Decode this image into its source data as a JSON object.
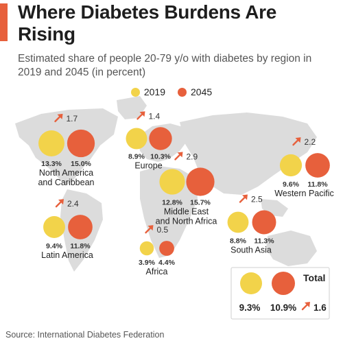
{
  "title": "Where Diabetes Burdens Are Rising",
  "subtitle": "Estimated share of people 20-79 y/o with diabetes by region in 2019 and 2045 (in percent)",
  "source": "Source: International Diabetes Federation",
  "colors": {
    "y2019": "#f2d34a",
    "y2045": "#e7603c",
    "arrow": "#e7603c",
    "map": "#dcdcdc",
    "accent": "#e7603c"
  },
  "chart_data": {
    "type": "bubble-map",
    "legend": [
      "2019",
      "2045"
    ],
    "regions": [
      {
        "name": "North America and Caribbean",
        "lines": [
          "North America",
          "and Caribbean"
        ],
        "v2019": 13.3,
        "v2045": 15.0,
        "change": 1.7
      },
      {
        "name": "Europe",
        "lines": [
          "Europe"
        ],
        "v2019": 8.9,
        "v2045": 10.3,
        "change": 1.4
      },
      {
        "name": "Middle East and North Africa",
        "lines": [
          "Middle East",
          "and North Africa"
        ],
        "v2019": 12.8,
        "v2045": 15.7,
        "change": 2.9
      },
      {
        "name": "Western Pacific",
        "lines": [
          "Western Pacific"
        ],
        "v2019": 9.6,
        "v2045": 11.8,
        "change": 2.2
      },
      {
        "name": "Latin America",
        "lines": [
          "Latin America"
        ],
        "v2019": 9.4,
        "v2045": 11.8,
        "change": 2.4
      },
      {
        "name": "Africa",
        "lines": [
          "Africa"
        ],
        "v2019": 3.9,
        "v2045": 4.4,
        "change": 0.5
      },
      {
        "name": "South Asia",
        "lines": [
          "South Asia"
        ],
        "v2019": 8.8,
        "v2045": 11.3,
        "change": 2.5
      }
    ],
    "total": {
      "label": "Total",
      "v2019": 9.3,
      "v2045": 10.9,
      "change": 1.6
    }
  }
}
